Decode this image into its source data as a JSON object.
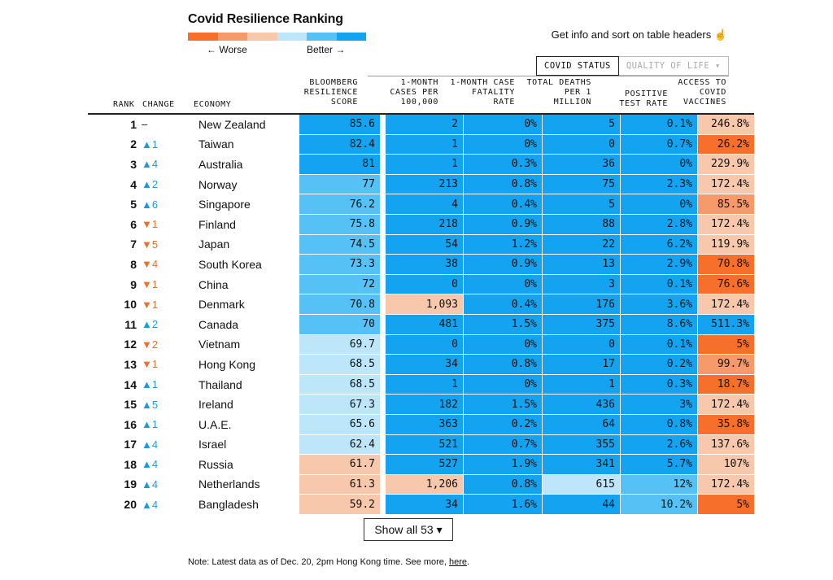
{
  "title": "Covid Resilience Ranking",
  "legend": {
    "colors": [
      "#f6702b",
      "#f69a6b",
      "#f7c8ac",
      "#bde6fa",
      "#56c1f5",
      "#14a3f0"
    ],
    "worse_label": "← Worse",
    "better_label": "Better →"
  },
  "info_text": "Get info and sort on table headers ☝",
  "tabs": {
    "active": "COVID STATUS",
    "inactive": "QUALITY OF LIFE ▾"
  },
  "headers": {
    "rank": "RANK",
    "change": "CHANGE",
    "economy": "ECONOMY",
    "score": [
      "BLOOMBERG",
      "RESILIENCE",
      "SCORE"
    ],
    "cases": [
      "1-MONTH",
      "CASES PER",
      "100,000"
    ],
    "fatality": [
      "1-MONTH CASE",
      "FATALITY",
      "RATE"
    ],
    "deaths": [
      "TOTAL DEATHS",
      "PER 1",
      "MILLION"
    ],
    "positive": [
      "POSITIVE",
      "TEST RATE"
    ],
    "vaccines": [
      "ACCESS TO",
      "COVID",
      "VACCINES"
    ]
  },
  "rows": [
    {
      "rank": "1",
      "dir": "none",
      "change": "–",
      "economy": "New Zealand",
      "score": "85.6",
      "cases": "2",
      "fatality": "0%",
      "deaths": "5",
      "positive": "0.1%",
      "vaccines": "246.8%",
      "c": [
        "#14a3f0",
        "#14a3f0",
        "#14a3f0",
        "#14a3f0",
        "#14a3f0",
        "#f7c8ac"
      ]
    },
    {
      "rank": "2",
      "dir": "up",
      "change": "▲1",
      "economy": "Taiwan",
      "score": "82.4",
      "cases": "1",
      "fatality": "0%",
      "deaths": "0",
      "positive": "0.7%",
      "vaccines": "26.2%",
      "c": [
        "#14a3f0",
        "#14a3f0",
        "#14a3f0",
        "#14a3f0",
        "#14a3f0",
        "#f6702b"
      ]
    },
    {
      "rank": "3",
      "dir": "up",
      "change": "▲4",
      "economy": "Australia",
      "score": "81",
      "cases": "1",
      "fatality": "0.3%",
      "deaths": "36",
      "positive": "0%",
      "vaccines": "229.9%",
      "c": [
        "#14a3f0",
        "#14a3f0",
        "#14a3f0",
        "#14a3f0",
        "#14a3f0",
        "#f7c8ac"
      ]
    },
    {
      "rank": "4",
      "dir": "up",
      "change": "▲2",
      "economy": "Norway",
      "score": "77",
      "cases": "213",
      "fatality": "0.8%",
      "deaths": "75",
      "positive": "2.3%",
      "vaccines": "172.4%",
      "c": [
        "#56c1f5",
        "#14a3f0",
        "#14a3f0",
        "#14a3f0",
        "#14a3f0",
        "#f7c8ac"
      ]
    },
    {
      "rank": "5",
      "dir": "up",
      "change": "▲6",
      "economy": "Singapore",
      "score": "76.2",
      "cases": "4",
      "fatality": "0.4%",
      "deaths": "5",
      "positive": "0%",
      "vaccines": "85.5%",
      "c": [
        "#56c1f5",
        "#14a3f0",
        "#14a3f0",
        "#14a3f0",
        "#14a3f0",
        "#f69a6b"
      ]
    },
    {
      "rank": "6",
      "dir": "down",
      "change": "▼1",
      "economy": "Finland",
      "score": "75.8",
      "cases": "218",
      "fatality": "0.9%",
      "deaths": "88",
      "positive": "2.8%",
      "vaccines": "172.4%",
      "c": [
        "#56c1f5",
        "#14a3f0",
        "#14a3f0",
        "#14a3f0",
        "#14a3f0",
        "#f7c8ac"
      ]
    },
    {
      "rank": "7",
      "dir": "down",
      "change": "▼5",
      "economy": "Japan",
      "score": "74.5",
      "cases": "54",
      "fatality": "1.2%",
      "deaths": "22",
      "positive": "6.2%",
      "vaccines": "119.9%",
      "c": [
        "#56c1f5",
        "#14a3f0",
        "#14a3f0",
        "#14a3f0",
        "#14a3f0",
        "#f7c8ac"
      ]
    },
    {
      "rank": "8",
      "dir": "down",
      "change": "▼4",
      "economy": "South Korea",
      "score": "73.3",
      "cases": "38",
      "fatality": "0.9%",
      "deaths": "13",
      "positive": "2.9%",
      "vaccines": "70.8%",
      "c": [
        "#56c1f5",
        "#14a3f0",
        "#14a3f0",
        "#14a3f0",
        "#14a3f0",
        "#f6702b"
      ]
    },
    {
      "rank": "9",
      "dir": "down",
      "change": "▼1",
      "economy": "China",
      "score": "72",
      "cases": "0",
      "fatality": "0%",
      "deaths": "3",
      "positive": "0.1%",
      "vaccines": "76.6%",
      "c": [
        "#56c1f5",
        "#14a3f0",
        "#14a3f0",
        "#14a3f0",
        "#14a3f0",
        "#f6702b"
      ]
    },
    {
      "rank": "10",
      "dir": "down",
      "change": "▼1",
      "economy": "Denmark",
      "score": "70.8",
      "cases": "1,093",
      "fatality": "0.4%",
      "deaths": "176",
      "positive": "3.6%",
      "vaccines": "172.4%",
      "c": [
        "#56c1f5",
        "#f7c8ac",
        "#14a3f0",
        "#14a3f0",
        "#14a3f0",
        "#f7c8ac"
      ]
    },
    {
      "rank": "11",
      "dir": "up",
      "change": "▲2",
      "economy": "Canada",
      "score": "70",
      "cases": "481",
      "fatality": "1.5%",
      "deaths": "375",
      "positive": "8.6%",
      "vaccines": "511.3%",
      "c": [
        "#56c1f5",
        "#14a3f0",
        "#14a3f0",
        "#14a3f0",
        "#14a3f0",
        "#14a3f0"
      ]
    },
    {
      "rank": "12",
      "dir": "down",
      "change": "▼2",
      "economy": "Vietnam",
      "score": "69.7",
      "cases": "0",
      "fatality": "0%",
      "deaths": "0",
      "positive": "0.1%",
      "vaccines": "5%",
      "c": [
        "#bde6fa",
        "#14a3f0",
        "#14a3f0",
        "#14a3f0",
        "#14a3f0",
        "#f6702b"
      ]
    },
    {
      "rank": "13",
      "dir": "down",
      "change": "▼1",
      "economy": "Hong Kong",
      "score": "68.5",
      "cases": "34",
      "fatality": "0.8%",
      "deaths": "17",
      "positive": "0.2%",
      "vaccines": "99.7%",
      "c": [
        "#bde6fa",
        "#14a3f0",
        "#14a3f0",
        "#14a3f0",
        "#14a3f0",
        "#f69a6b"
      ]
    },
    {
      "rank": "14",
      "dir": "up",
      "change": "▲1",
      "economy": "Thailand",
      "score": "68.5",
      "cases": "1",
      "fatality": "0%",
      "deaths": "1",
      "positive": "0.3%",
      "vaccines": "18.7%",
      "c": [
        "#bde6fa",
        "#14a3f0",
        "#14a3f0",
        "#14a3f0",
        "#14a3f0",
        "#f6702b"
      ]
    },
    {
      "rank": "15",
      "dir": "up",
      "change": "▲5",
      "economy": "Ireland",
      "score": "67.3",
      "cases": "182",
      "fatality": "1.5%",
      "deaths": "436",
      "positive": "3%",
      "vaccines": "172.4%",
      "c": [
        "#bde6fa",
        "#14a3f0",
        "#14a3f0",
        "#14a3f0",
        "#14a3f0",
        "#f7c8ac"
      ]
    },
    {
      "rank": "16",
      "dir": "up",
      "change": "▲1",
      "economy": "U.A.E.",
      "score": "65.6",
      "cases": "363",
      "fatality": "0.2%",
      "deaths": "64",
      "positive": "0.8%",
      "vaccines": "35.8%",
      "c": [
        "#bde6fa",
        "#14a3f0",
        "#14a3f0",
        "#14a3f0",
        "#14a3f0",
        "#f6702b"
      ]
    },
    {
      "rank": "17",
      "dir": "up",
      "change": "▲4",
      "economy": "Israel",
      "score": "62.4",
      "cases": "521",
      "fatality": "0.7%",
      "deaths": "355",
      "positive": "2.6%",
      "vaccines": "137.6%",
      "c": [
        "#bde6fa",
        "#14a3f0",
        "#14a3f0",
        "#14a3f0",
        "#14a3f0",
        "#f7c8ac"
      ]
    },
    {
      "rank": "18",
      "dir": "up",
      "change": "▲4",
      "economy": "Russia",
      "score": "61.7",
      "cases": "527",
      "fatality": "1.9%",
      "deaths": "341",
      "positive": "5.7%",
      "vaccines": "107%",
      "c": [
        "#f7c8ac",
        "#14a3f0",
        "#14a3f0",
        "#14a3f0",
        "#14a3f0",
        "#f7c8ac"
      ]
    },
    {
      "rank": "19",
      "dir": "up",
      "change": "▲4",
      "economy": "Netherlands",
      "score": "61.3",
      "cases": "1,206",
      "fatality": "0.8%",
      "deaths": "615",
      "positive": "12%",
      "vaccines": "172.4%",
      "c": [
        "#f7c8ac",
        "#f7c8ac",
        "#14a3f0",
        "#bde6fa",
        "#56c1f5",
        "#f7c8ac"
      ]
    },
    {
      "rank": "20",
      "dir": "up",
      "change": "▲4",
      "economy": "Bangladesh",
      "score": "59.2",
      "cases": "34",
      "fatality": "1.6%",
      "deaths": "44",
      "positive": "10.2%",
      "vaccines": "5%",
      "c": [
        "#f7c8ac",
        "#14a3f0",
        "#14a3f0",
        "#14a3f0",
        "#56c1f5",
        "#f6702b"
      ]
    }
  ],
  "show_all_label": "Show all 53 ▾",
  "note": {
    "text": "Note: Latest data as of Dec. 20, 2pm Hong Kong time. See more, ",
    "link": "here",
    "end": "."
  }
}
